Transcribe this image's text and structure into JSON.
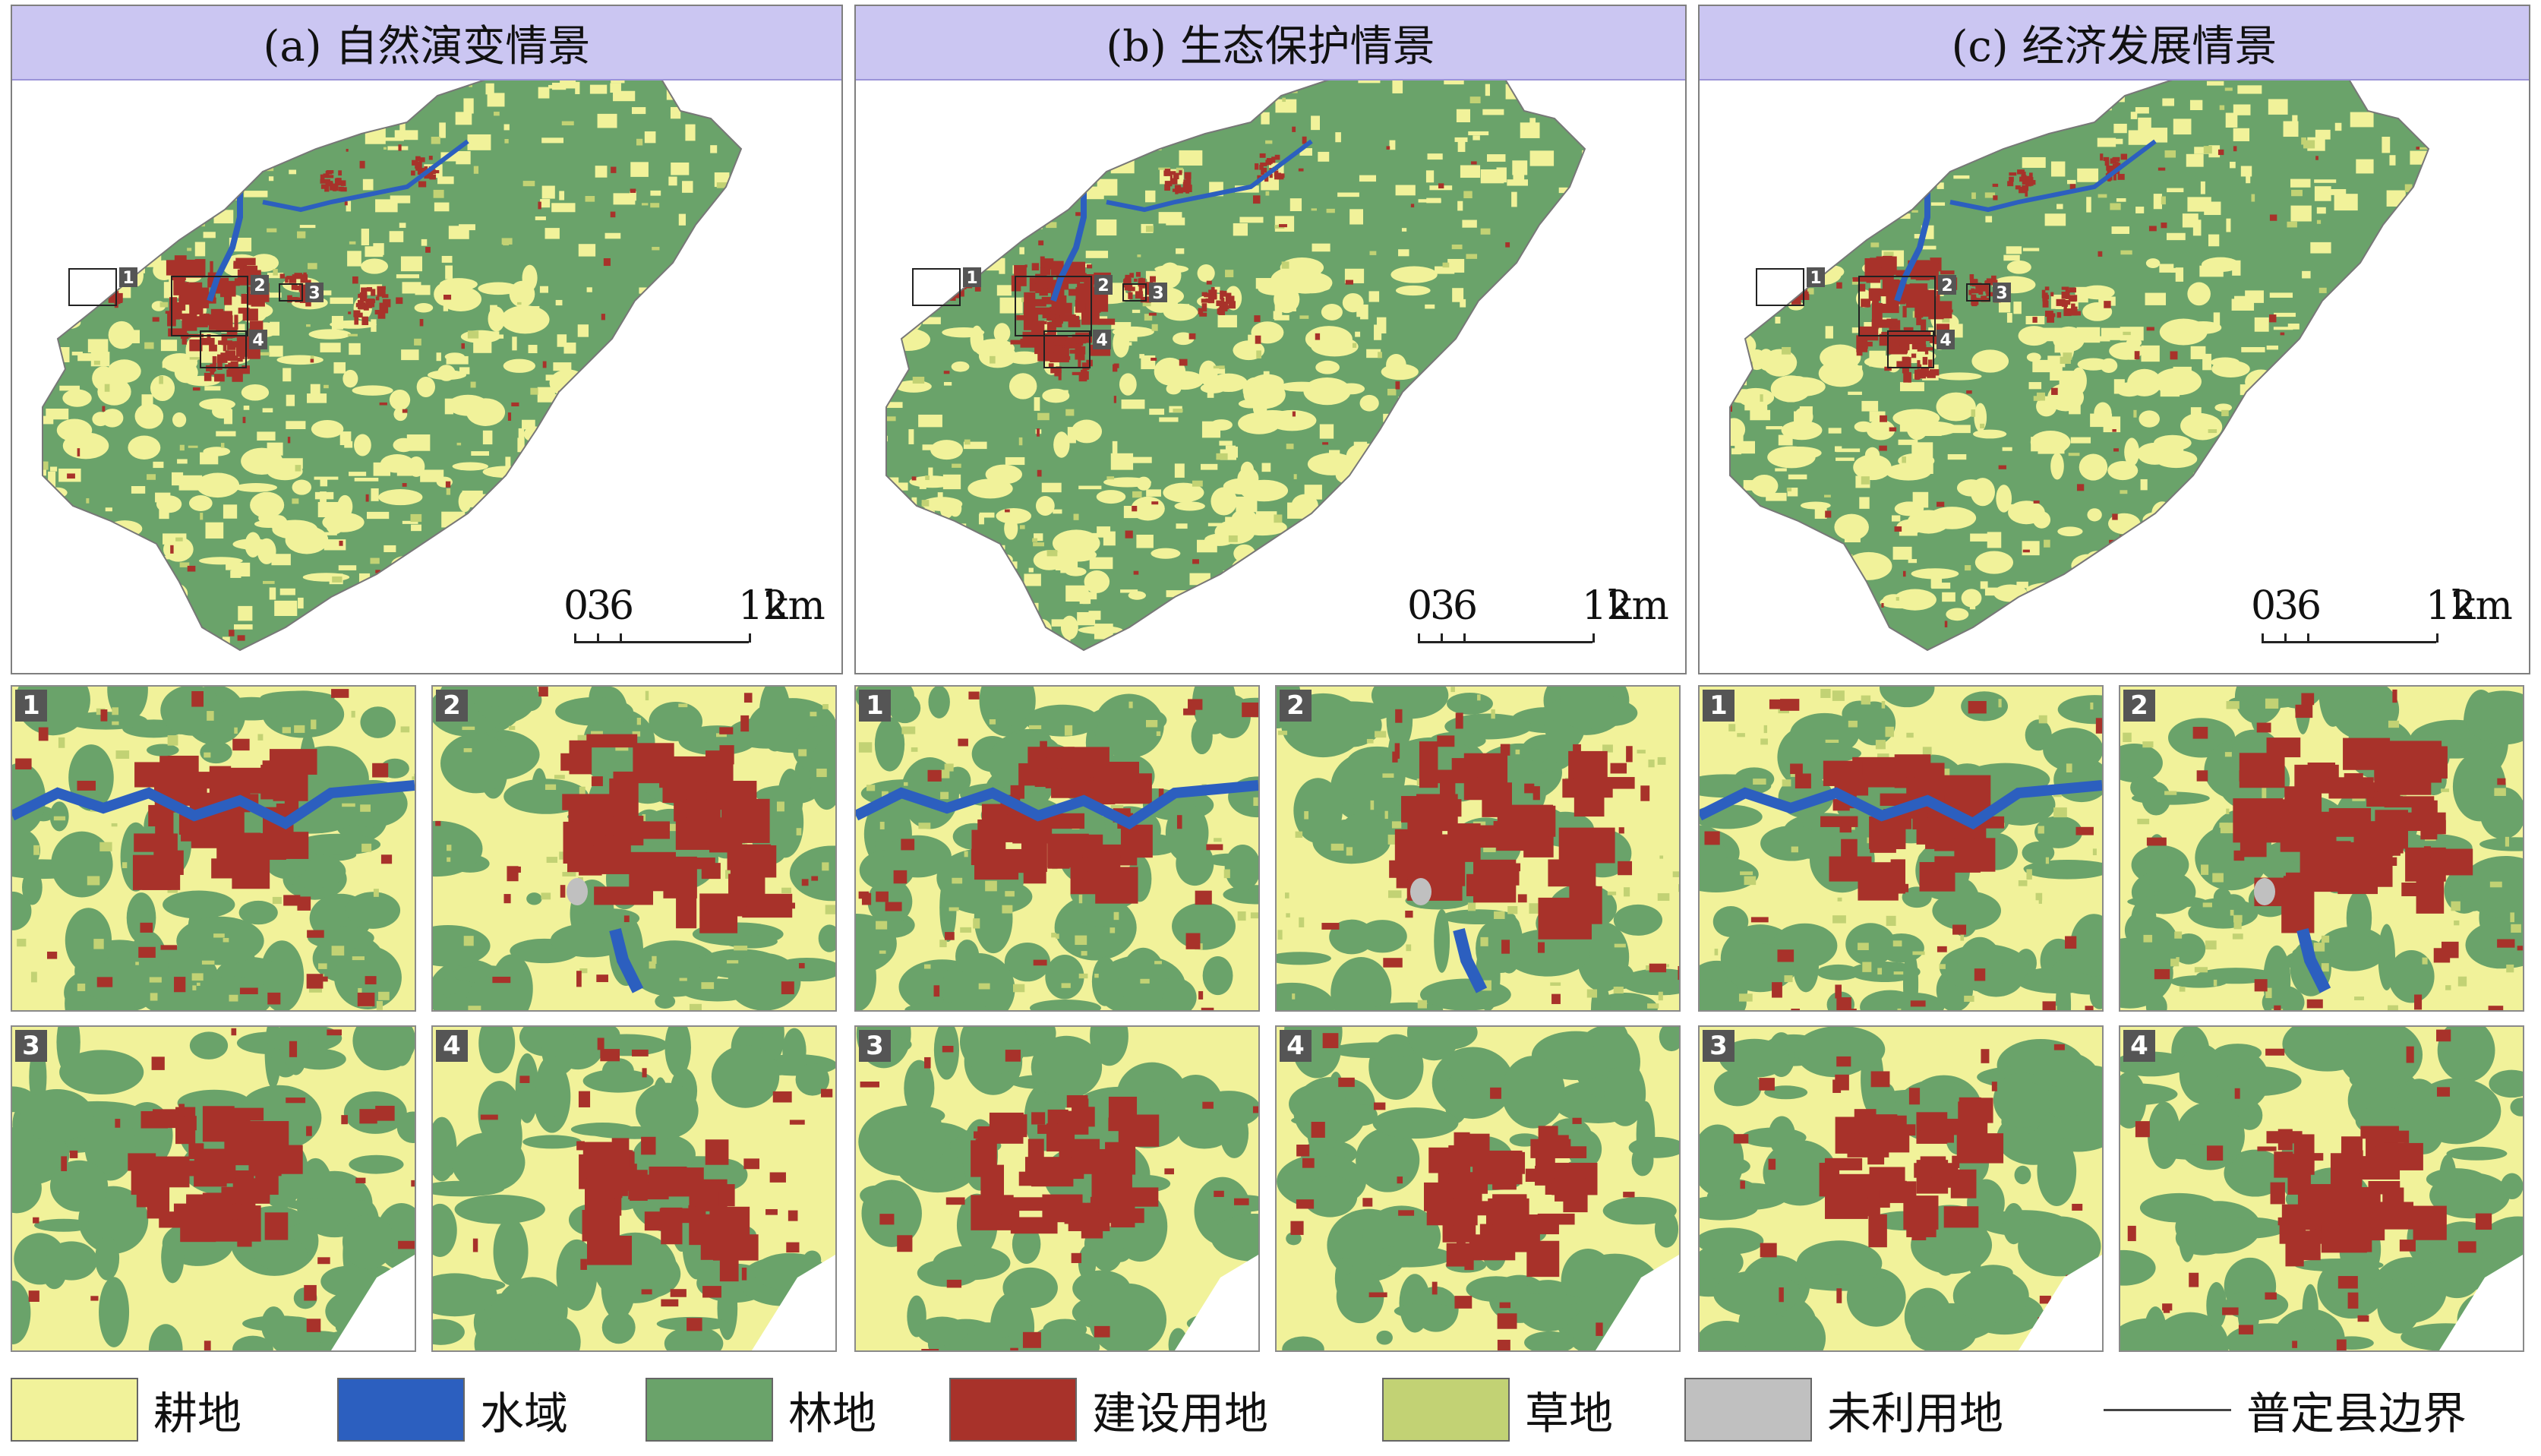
{
  "colors": {
    "cropland": "#f1f29a",
    "water": "#2c5fbf",
    "forest": "#6aa36a",
    "builtup": "#a8322a",
    "grassland": "#c2d274",
    "unused": "#c0c0c0",
    "boundary": "#444444"
  },
  "panels": [
    {
      "title": "(a) 自然演变情景"
    },
    {
      "title": "(b) 生态保护情景"
    },
    {
      "title": "(c) 经济发展情景"
    }
  ],
  "scale": {
    "ticks": [
      "0",
      "3",
      "6",
      "12"
    ],
    "unit": "km"
  },
  "box_labels": [
    "1",
    "2",
    "3",
    "4"
  ],
  "legend": [
    {
      "label": "耕地",
      "color_key": "cropland"
    },
    {
      "label": "水域",
      "color_key": "water"
    },
    {
      "label": "林地",
      "color_key": "forest"
    },
    {
      "label": "建设用地",
      "color_key": "builtup"
    },
    {
      "label": "草地",
      "color_key": "grassland"
    },
    {
      "label": "未利用地",
      "color_key": "unused"
    },
    {
      "label": "普定县边界",
      "color_key": "boundary",
      "kind": "line"
    }
  ]
}
